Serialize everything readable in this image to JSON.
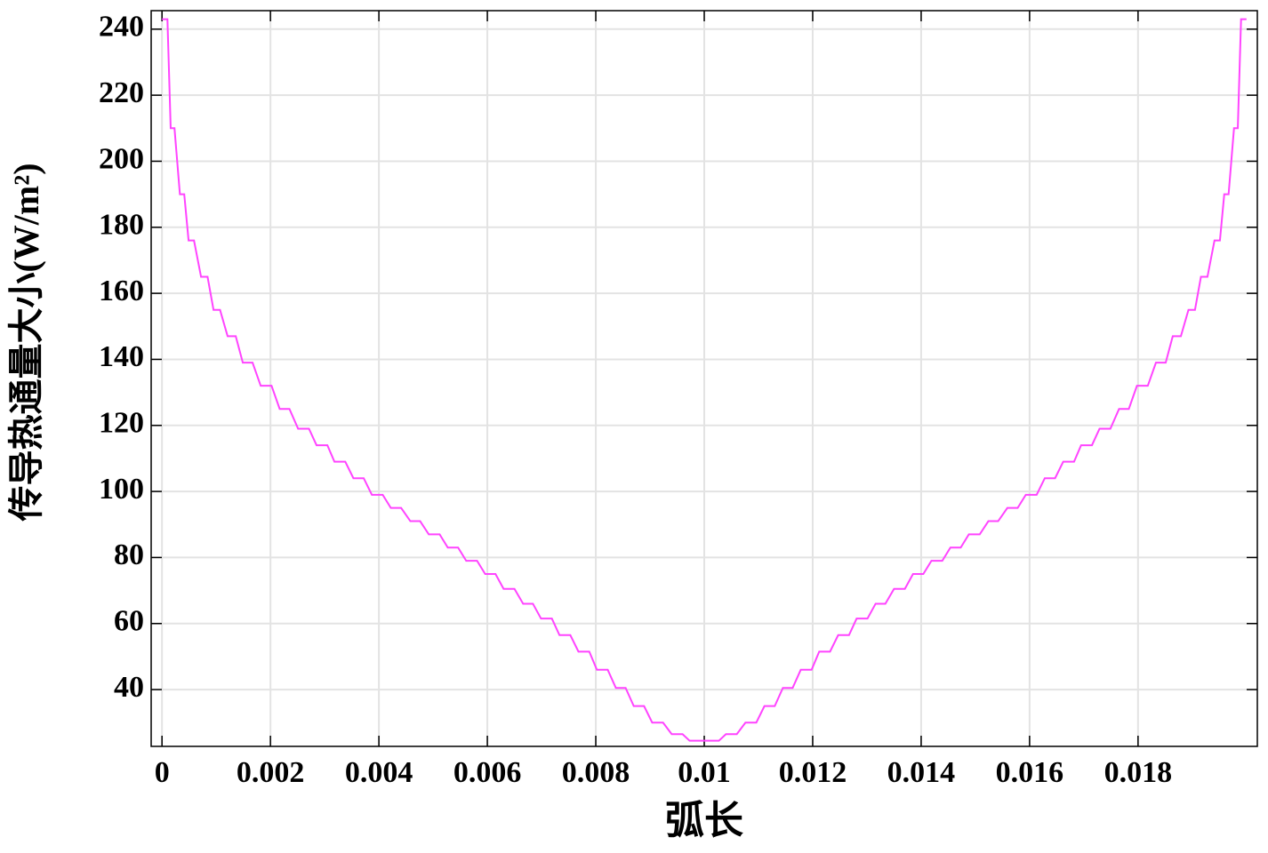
{
  "chart_data": {
    "type": "line",
    "x_label": "弧长",
    "y_label": "传导热通量大小(W/m²)",
    "xlim": [
      -0.0002,
      0.0202
    ],
    "ylim": [
      22.8,
      245.6
    ],
    "xticks": [
      0,
      0.002,
      0.004,
      0.006,
      0.008,
      0.01,
      0.012,
      0.014,
      0.016,
      0.018
    ],
    "yticks": [
      40,
      60,
      80,
      100,
      120,
      140,
      160,
      180,
      200,
      220,
      240
    ],
    "grid": true,
    "x": [
      0,
      0.0001,
      0.00016,
      0.00023,
      0.00033,
      0.00041,
      0.00049,
      0.00059,
      0.00072,
      0.00084,
      0.00095,
      0.00107,
      0.00121,
      0.00136,
      0.00149,
      0.00167,
      0.00182,
      0.00202,
      0.00217,
      0.00235,
      0.00251,
      0.00271,
      0.00285,
      0.00305,
      0.00318,
      0.00338,
      0.00353,
      0.00372,
      0.00387,
      0.00407,
      0.00422,
      0.00441,
      0.00458,
      0.00476,
      0.00492,
      0.00512,
      0.00527,
      0.00546,
      0.00561,
      0.00581,
      0.00596,
      0.00615,
      0.0063,
      0.0065,
      0.00666,
      0.00684,
      0.00699,
      0.00719,
      0.00733,
      0.00753,
      0.00768,
      0.00788,
      0.00802,
      0.00822,
      0.00837,
      0.00855,
      0.0087,
      0.00889,
      0.00904,
      0.00924,
      0.0094,
      0.0096,
      0.00973,
      0.01027,
      0.0104,
      0.0106,
      0.01076,
      0.01096,
      0.01111,
      0.0113,
      0.01145,
      0.01163,
      0.01178,
      0.01198,
      0.01212,
      0.01232,
      0.01247,
      0.01267,
      0.01281,
      0.01301,
      0.01316,
      0.01334,
      0.0135,
      0.0137,
      0.01385,
      0.01404,
      0.01419,
      0.01439,
      0.01454,
      0.01473,
      0.01488,
      0.01508,
      0.01524,
      0.01542,
      0.01559,
      0.01578,
      0.01593,
      0.01613,
      0.01628,
      0.01647,
      0.01662,
      0.01682,
      0.01695,
      0.01715,
      0.01729,
      0.01749,
      0.01765,
      0.01783,
      0.01798,
      0.01818,
      0.01833,
      0.01851,
      0.01864,
      0.01879,
      0.01893,
      0.01905,
      0.01916,
      0.01928,
      0.01941,
      0.01951,
      0.01959,
      0.01967,
      0.01977,
      0.01984,
      0.0199,
      0.02
    ],
    "series": [
      {
        "color": "#ff44ff",
        "values": [
          243,
          243,
          210,
          210,
          190,
          190,
          176,
          176,
          165,
          165,
          155,
          155,
          147,
          147,
          139,
          139,
          132,
          132,
          125,
          125,
          119,
          119,
          114,
          114,
          109,
          109,
          104,
          104,
          99,
          99,
          95,
          95,
          91,
          91,
          87,
          87,
          83,
          83,
          79,
          79,
          75,
          75,
          70.5,
          70.5,
          66,
          66,
          61.5,
          61.5,
          56.5,
          56.5,
          51.5,
          51.5,
          46,
          46,
          40.5,
          40.5,
          35,
          35,
          30,
          30,
          26.5,
          26.5,
          24.5,
          24.5,
          26.5,
          26.5,
          30,
          30,
          35,
          35,
          40.5,
          40.5,
          46,
          46,
          51.5,
          51.5,
          56.5,
          56.5,
          61.5,
          61.5,
          66,
          66,
          70.5,
          70.5,
          75,
          75,
          79,
          79,
          83,
          83,
          87,
          87,
          91,
          91,
          95,
          95,
          99,
          99,
          104,
          104,
          109,
          109,
          114,
          114,
          119,
          119,
          125,
          125,
          132,
          132,
          139,
          139,
          147,
          147,
          155,
          155,
          165,
          165,
          176,
          176,
          190,
          190,
          210,
          210,
          243,
          243
        ]
      }
    ]
  }
}
